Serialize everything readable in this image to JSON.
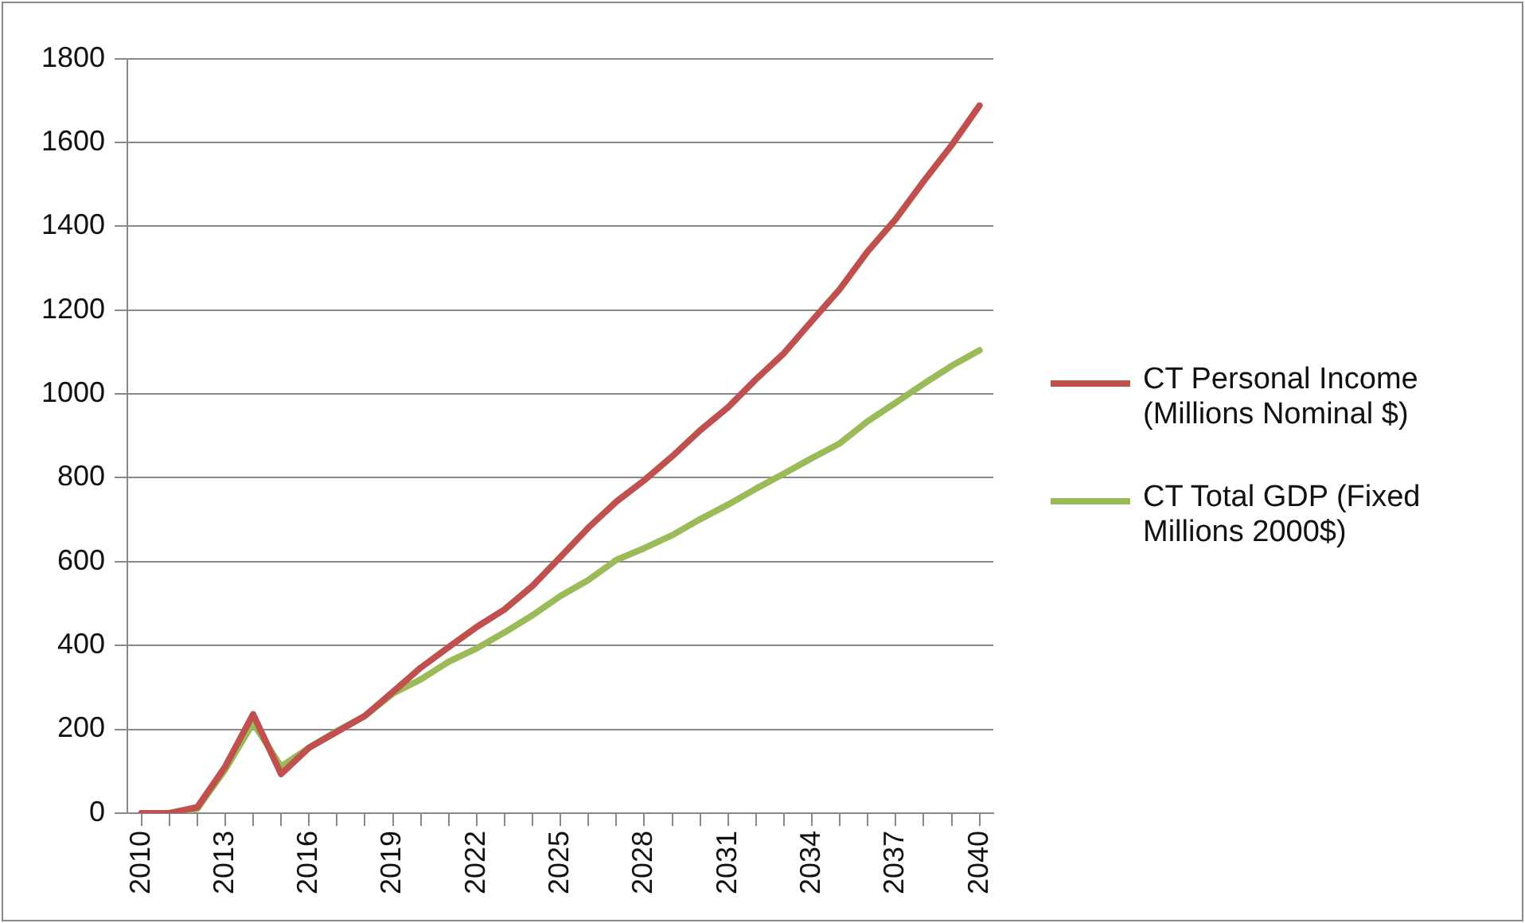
{
  "chart_data": {
    "type": "line",
    "categories": [
      "2010",
      null,
      null,
      "2013",
      null,
      null,
      "2016",
      null,
      null,
      "2019",
      null,
      null,
      "2022",
      null,
      null,
      "2025",
      null,
      null,
      "2028",
      null,
      null,
      "2031",
      null,
      null,
      "2034",
      null,
      null,
      "2037",
      null,
      null,
      "2040"
    ],
    "series": [
      {
        "name": "CT Personal Income (Millions Nominal $)",
        "color": "#c0504d",
        "values": [
          0,
          0,
          14,
          111,
          236,
          93,
          156,
          194,
          232,
          289,
          347,
          396,
          444,
          486,
          542,
          611,
          681,
          743,
          794,
          851,
          913,
          968,
          1035,
          1097,
          1174,
          1250,
          1340,
          1417,
          1507,
          1593,
          1688
        ]
      },
      {
        "name": "CT Total GDP (Fixed Millions 2000$)",
        "color": "#9bbb59",
        "values": [
          0,
          0,
          10,
          104,
          215,
          111,
          156,
          196,
          232,
          285,
          319,
          361,
          393,
          431,
          472,
          518,
          556,
          604,
          632,
          663,
          701,
          736,
          774,
          810,
          847,
          882,
          935,
          979,
          1024,
          1067,
          1104
        ]
      }
    ],
    "ylim": [
      0,
      1800
    ],
    "yticks": [
      0,
      200,
      400,
      600,
      800,
      1000,
      1200,
      1400,
      1600,
      1800
    ],
    "grid": "y",
    "legend": "right",
    "marker": "none",
    "line_style": "solid"
  }
}
